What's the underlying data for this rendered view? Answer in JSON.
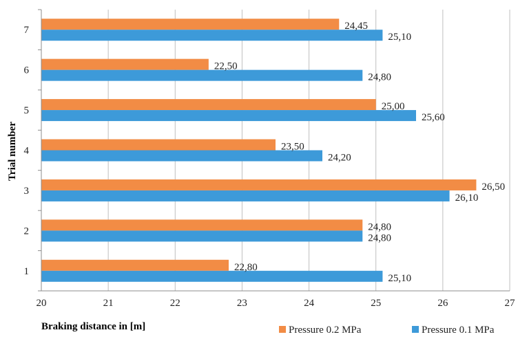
{
  "chart_data": {
    "type": "bar",
    "orientation": "horizontal",
    "xlabel": "Braking distance in [m]",
    "ylabel": "Trial number",
    "xlim": [
      20,
      27
    ],
    "x_ticks": [
      "20",
      "21",
      "22",
      "23",
      "24",
      "25",
      "26",
      "27"
    ],
    "categories": [
      "1",
      "2",
      "3",
      "4",
      "5",
      "6",
      "7"
    ],
    "grid": "vertical",
    "legend_position": "bottom-right",
    "series": [
      {
        "name": "Pressure 0.2 MPa",
        "color": "#F28C45",
        "values": [
          22.8,
          24.8,
          26.5,
          23.5,
          25.0,
          22.5,
          24.45
        ],
        "labels": [
          "22,80",
          "24,80",
          "26,50",
          "23,50",
          "25,00",
          "22,50",
          "24,45"
        ]
      },
      {
        "name": "Pressure 0.1 MPa",
        "color": "#3D9AD9",
        "values": [
          25.1,
          24.8,
          26.1,
          24.2,
          25.6,
          24.8,
          25.1
        ],
        "labels": [
          "25,10",
          "24,80",
          "26,10",
          "24,20",
          "25,60",
          "24,80",
          "25,10"
        ]
      }
    ]
  }
}
